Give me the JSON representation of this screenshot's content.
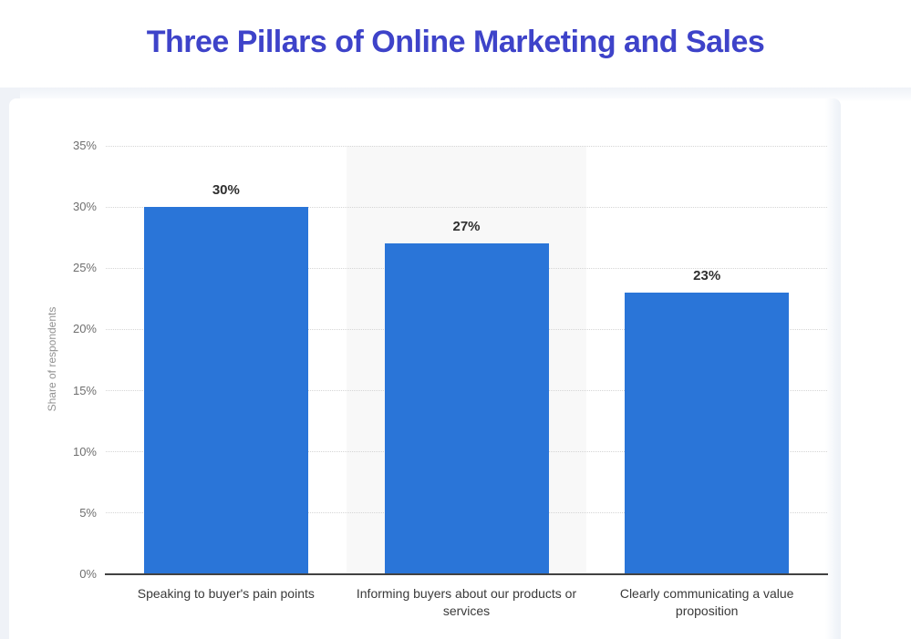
{
  "page": {
    "title": "Three Pillars of Online Marketing and Sales",
    "title_color": "#3e43c9"
  },
  "chart_data": {
    "type": "bar",
    "title": "Three Pillars of Online Marketing and Sales",
    "categories": [
      "Speaking to buyer's pain points",
      "Informing buyers about our products or services",
      "Clearly communicating a value proposition"
    ],
    "values": [
      30,
      27,
      23
    ],
    "value_labels": [
      "30%",
      "27%",
      "23%"
    ],
    "xlabel": "",
    "ylabel": "Share of respondents",
    "ylim": [
      0,
      35
    ],
    "ytick_step": 5,
    "ytick_labels": [
      "0%",
      "5%",
      "10%",
      "15%",
      "20%",
      "25%",
      "30%",
      "35%"
    ],
    "grid": "horizontal-dotted",
    "legend_position": "none",
    "bar_color": "#2a75d8",
    "highlight_band_column_index": 1,
    "highlight_band_color": "#f8f8f8"
  }
}
